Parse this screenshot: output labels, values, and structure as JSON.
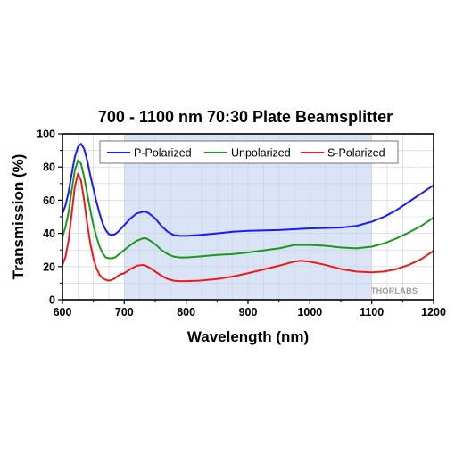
{
  "chart_data": {
    "type": "line",
    "title": "700 - 1100 nm 70:30 Plate Beamsplitter",
    "xlabel": "Wavelength (nm)",
    "ylabel": "Transmission (%)",
    "xlim": [
      600,
      1200
    ],
    "ylim": [
      0,
      100
    ],
    "xticks": [
      "600",
      "700",
      "800",
      "900",
      "1000",
      "1100",
      "1200"
    ],
    "yticks": [
      "0",
      "20",
      "40",
      "60",
      "80",
      "100"
    ],
    "grid": true,
    "legend_position": "top",
    "highlight_band": [
      700,
      1100
    ],
    "highlight_color": "#dbe4f5",
    "watermark": "THORLABS",
    "series": [
      {
        "name": "P-Polarized",
        "color": "#1a1aff",
        "x": [
          600,
          605,
          610,
          615,
          620,
          625,
          630,
          635,
          640,
          645,
          650,
          655,
          660,
          665,
          670,
          675,
          680,
          685,
          690,
          695,
          700,
          710,
          720,
          730,
          735,
          740,
          750,
          760,
          770,
          780,
          790,
          800,
          820,
          850,
          875,
          900,
          950,
          1000,
          1050,
          1075,
          1100,
          1120,
          1140,
          1160,
          1180,
          1200
        ],
        "y": [
          52,
          57,
          65,
          76,
          86,
          92,
          94,
          91,
          84,
          75,
          67,
          59,
          52,
          46,
          42,
          39.5,
          39,
          39.5,
          41,
          43,
          45,
          49,
          52,
          53,
          53,
          52,
          49,
          44.5,
          41,
          39,
          38.5,
          38.5,
          39,
          40,
          41,
          41.5,
          42,
          43,
          43.5,
          44.5,
          47,
          50,
          54,
          59,
          64,
          69
        ]
      },
      {
        "name": "Unpolarized",
        "color": "#1a9a1a",
        "x": [
          600,
          605,
          610,
          615,
          620,
          625,
          630,
          635,
          640,
          645,
          650,
          655,
          660,
          665,
          670,
          675,
          680,
          685,
          690,
          695,
          700,
          710,
          720,
          730,
          735,
          740,
          750,
          760,
          770,
          780,
          790,
          800,
          820,
          850,
          875,
          900,
          950,
          975,
          1000,
          1025,
          1050,
          1075,
          1100,
          1120,
          1140,
          1160,
          1180,
          1200
        ],
        "y": [
          38,
          44,
          53,
          66,
          78,
          84,
          82,
          74,
          64,
          54,
          45,
          38,
          32,
          28,
          25.5,
          25,
          25,
          25.5,
          27,
          28.5,
          30,
          33,
          35.5,
          37,
          37,
          36,
          33.5,
          30,
          27.5,
          26,
          25.5,
          25.5,
          26,
          27,
          27.5,
          28.5,
          31,
          33,
          33,
          32.5,
          31.5,
          31,
          32,
          34,
          37,
          40.5,
          44.5,
          49.5
        ]
      },
      {
        "name": "S-Polarized",
        "color": "#ee1a1a",
        "x": [
          600,
          605,
          610,
          615,
          620,
          625,
          630,
          635,
          640,
          645,
          650,
          655,
          660,
          665,
          670,
          675,
          680,
          685,
          690,
          695,
          700,
          710,
          720,
          730,
          735,
          740,
          750,
          760,
          770,
          780,
          790,
          800,
          820,
          850,
          875,
          900,
          950,
          975,
          985,
          1000,
          1025,
          1050,
          1075,
          1100,
          1120,
          1140,
          1160,
          1180,
          1200
        ],
        "y": [
          21,
          26,
          36,
          52,
          68,
          76,
          72,
          60,
          46,
          34,
          25,
          19,
          15,
          13,
          12,
          11.5,
          12,
          13,
          14.5,
          15.5,
          16,
          18.5,
          20.5,
          21,
          20.5,
          19.5,
          17,
          14.5,
          12.5,
          11.5,
          11.2,
          11.2,
          11.5,
          12.5,
          14,
          16,
          20.5,
          23,
          23.5,
          23,
          21,
          18.5,
          17,
          16.5,
          17,
          18.5,
          21,
          24.5,
          29.5
        ]
      }
    ]
  }
}
